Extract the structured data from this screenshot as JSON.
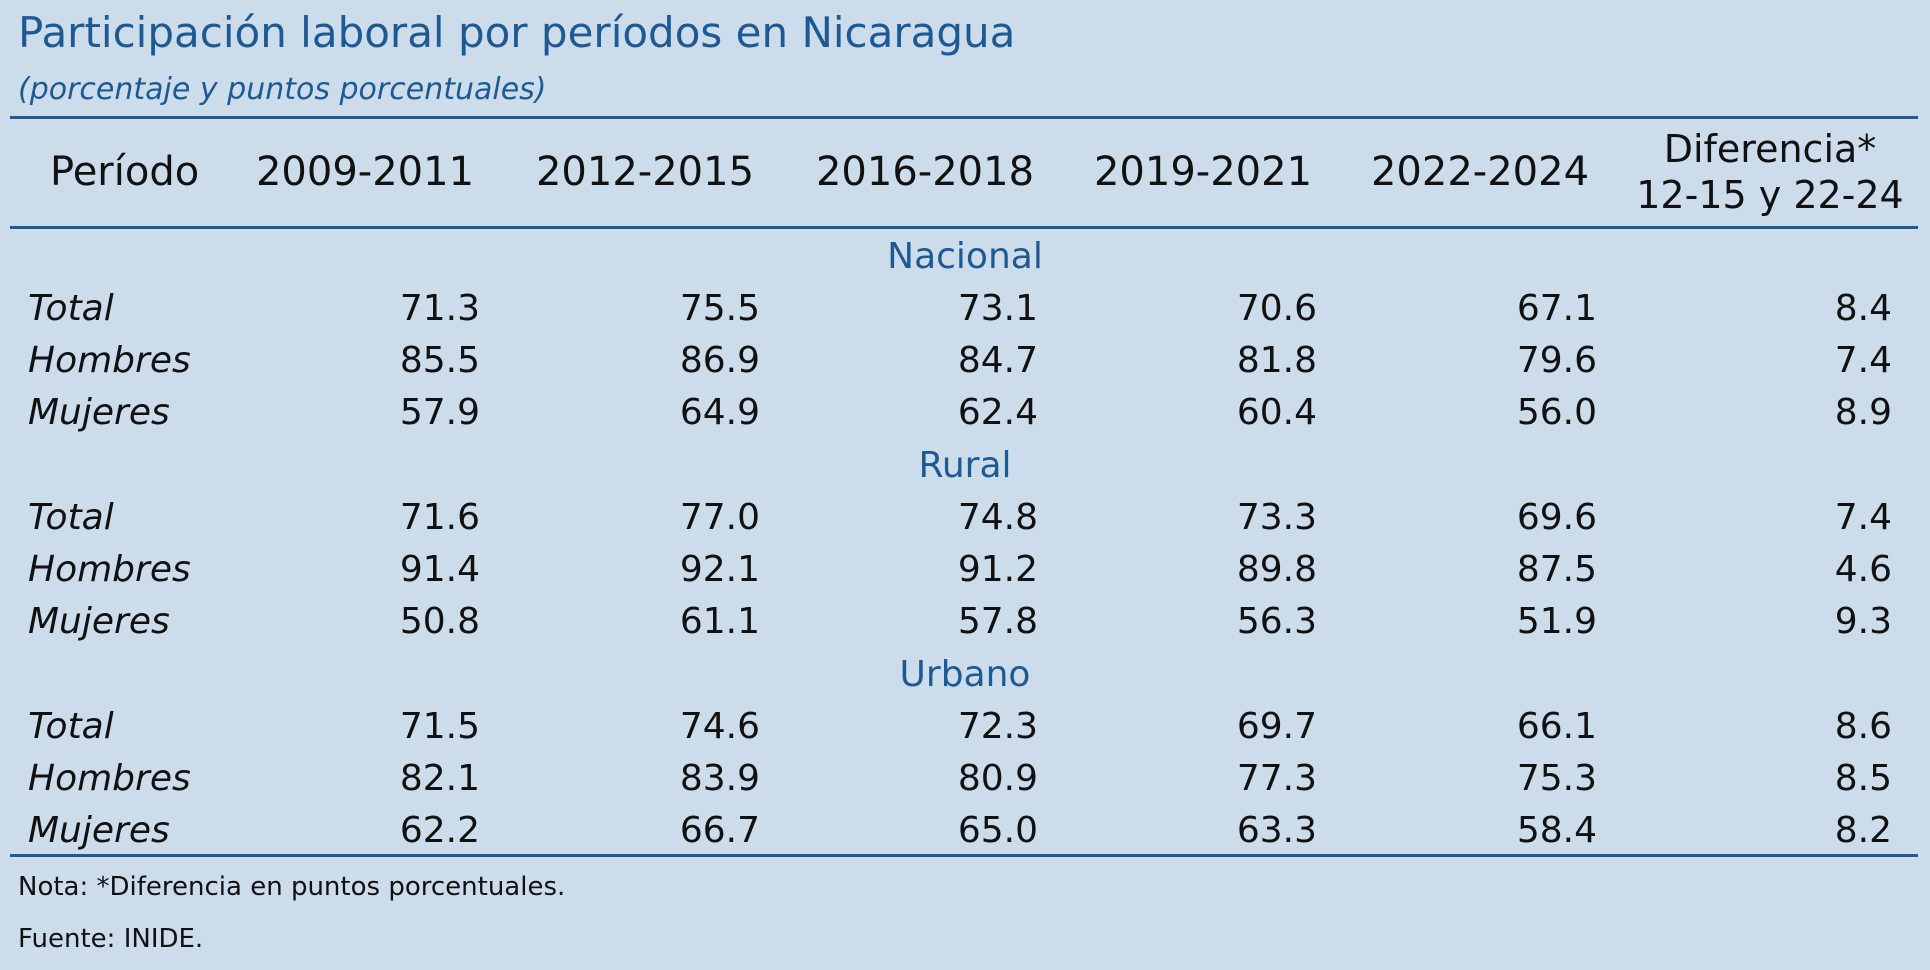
{
  "title": "Participación laboral por períodos en Nicaragua",
  "subtitle": "(porcentaje y puntos porcentuales)",
  "header": {
    "periodo": "Período",
    "columns": [
      "2009-2011",
      "2012-2015",
      "2016-2018",
      "2019-2021",
      "2022-2024"
    ],
    "diff_line1": "Diferencia*",
    "diff_line2": "12-15 y 22-24"
  },
  "sections": [
    {
      "name": "Nacional",
      "rows": [
        {
          "label": "Total",
          "values": [
            "71.3",
            "75.5",
            "73.1",
            "70.6",
            "67.1",
            "8.4"
          ]
        },
        {
          "label": "Hombres",
          "values": [
            "85.5",
            "86.9",
            "84.7",
            "81.8",
            "79.6",
            "7.4"
          ]
        },
        {
          "label": "Mujeres",
          "values": [
            "57.9",
            "64.9",
            "62.4",
            "60.4",
            "56.0",
            "8.9"
          ]
        }
      ]
    },
    {
      "name": "Rural",
      "rows": [
        {
          "label": "Total",
          "values": [
            "71.6",
            "77.0",
            "74.8",
            "73.3",
            "69.6",
            "7.4"
          ]
        },
        {
          "label": "Hombres",
          "values": [
            "91.4",
            "92.1",
            "91.2",
            "89.8",
            "87.5",
            "4.6"
          ]
        },
        {
          "label": "Mujeres",
          "values": [
            "50.8",
            "61.1",
            "57.8",
            "56.3",
            "51.9",
            "9.3"
          ]
        }
      ]
    },
    {
      "name": "Urbano",
      "rows": [
        {
          "label": "Total",
          "values": [
            "71.5",
            "74.6",
            "72.3",
            "69.7",
            "66.1",
            "8.6"
          ]
        },
        {
          "label": "Hombres",
          "values": [
            "82.1",
            "83.9",
            "80.9",
            "77.3",
            "75.3",
            "8.5"
          ]
        },
        {
          "label": "Mujeres",
          "values": [
            "62.2",
            "66.7",
            "65.0",
            "63.3",
            "58.4",
            "8.2"
          ]
        }
      ]
    }
  ],
  "nota": "Nota: *Diferencia en puntos porcentuales.",
  "fuente": "Fuente: INIDE."
}
